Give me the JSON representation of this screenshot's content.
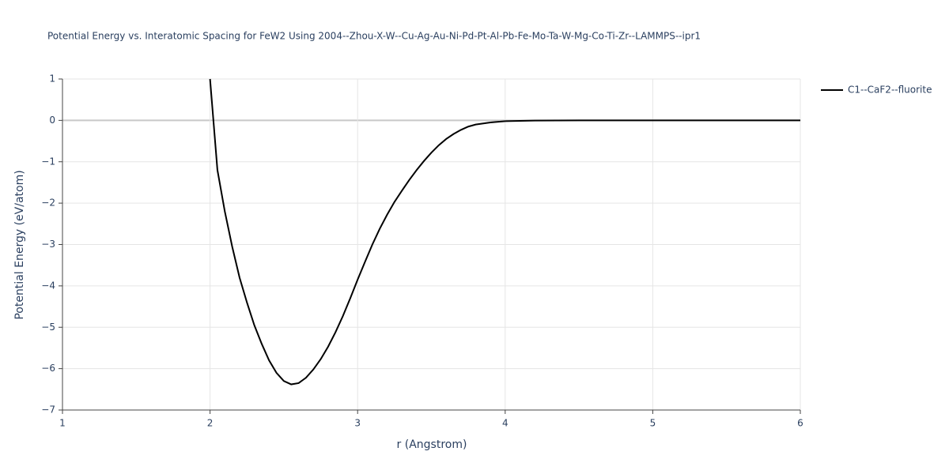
{
  "chart_data": {
    "type": "line",
    "title": "Potential Energy vs. Interatomic Spacing for FeW2 Using 2004--Zhou-X-W--Cu-Ag-Au-Ni-Pd-Pt-Al-Pb-Fe-Mo-Ta-W-Mg-Co-Ti-Zr--LAMMPS--ipr1",
    "xlabel": "r (Angstrom)",
    "ylabel": "Potential Energy (eV/atom)",
    "x": [
      2.0,
      2.05,
      2.1,
      2.15,
      2.2,
      2.25,
      2.3,
      2.35,
      2.4,
      2.45,
      2.5,
      2.55,
      2.6,
      2.65,
      2.7,
      2.75,
      2.8,
      2.85,
      2.9,
      2.95,
      3.0,
      3.05,
      3.1,
      3.15,
      3.2,
      3.25,
      3.3,
      3.35,
      3.4,
      3.45,
      3.5,
      3.55,
      3.6,
      3.65,
      3.7,
      3.75,
      3.8,
      3.9,
      4.0,
      4.2,
      4.5,
      5.0,
      6.0
    ],
    "series": [
      {
        "name": "C1--CaF2--fluorite",
        "color": "#000000",
        "values": [
          1.0,
          -1.2,
          -2.2,
          -3.05,
          -3.8,
          -4.4,
          -4.95,
          -5.4,
          -5.8,
          -6.1,
          -6.3,
          -6.38,
          -6.35,
          -6.22,
          -6.02,
          -5.77,
          -5.47,
          -5.12,
          -4.73,
          -4.3,
          -3.85,
          -3.42,
          -3.0,
          -2.62,
          -2.28,
          -1.97,
          -1.7,
          -1.44,
          -1.2,
          -0.98,
          -0.78,
          -0.6,
          -0.45,
          -0.33,
          -0.23,
          -0.15,
          -0.1,
          -0.05,
          -0.02,
          -0.005,
          0,
          0,
          0
        ]
      }
    ],
    "xlim": [
      1,
      6
    ],
    "xticks": [
      1,
      2,
      3,
      4,
      5,
      6
    ],
    "ylim": [
      -7,
      1
    ],
    "yticks": [
      {
        "value": -7,
        "label": "−7"
      },
      {
        "value": -6,
        "label": "−6"
      },
      {
        "value": -5,
        "label": "−5"
      },
      {
        "value": -4,
        "label": "−4"
      },
      {
        "value": -3,
        "label": "−3"
      },
      {
        "value": -2,
        "label": "−2"
      },
      {
        "value": -1,
        "label": "−1"
      },
      0,
      1
    ],
    "grid": true
  }
}
